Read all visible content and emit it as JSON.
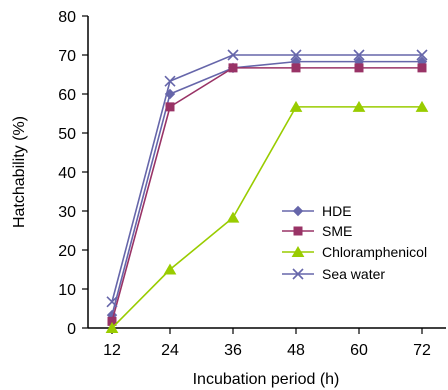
{
  "chart_data": {
    "type": "line",
    "title": "",
    "xlabel": "Incubation period (h)",
    "ylabel": "Hatchability (%)",
    "x": [
      12,
      24,
      36,
      48,
      60,
      72
    ],
    "x_tick_labels": [
      "12",
      "24",
      "36",
      "48",
      "60",
      "72"
    ],
    "ylim": [
      0,
      80
    ],
    "y_ticks": [
      0,
      10,
      20,
      30,
      40,
      50,
      60,
      70,
      80
    ],
    "y_tick_labels": [
      "0",
      "10",
      "20",
      "30",
      "40",
      "50",
      "60",
      "70",
      "80"
    ],
    "grid": false,
    "legend_position": "right",
    "series": [
      {
        "name": "HDE",
        "values": [
          3.3,
          60,
          66.7,
          68.3,
          68.3,
          68.3
        ],
        "color": "#6666aa",
        "marker": "diamond"
      },
      {
        "name": "SME",
        "values": [
          1.7,
          56.7,
          66.7,
          66.7,
          66.7,
          66.7
        ],
        "color": "#993366",
        "marker": "square"
      },
      {
        "name": "Chloramphenicol",
        "values": [
          0,
          15,
          28.3,
          56.7,
          56.7,
          56.7
        ],
        "color": "#99cc00",
        "marker": "triangle"
      },
      {
        "name": "Sea water",
        "values": [
          6.7,
          63.3,
          70,
          70,
          70,
          70
        ],
        "color": "#6666aa",
        "marker": "x"
      }
    ]
  }
}
